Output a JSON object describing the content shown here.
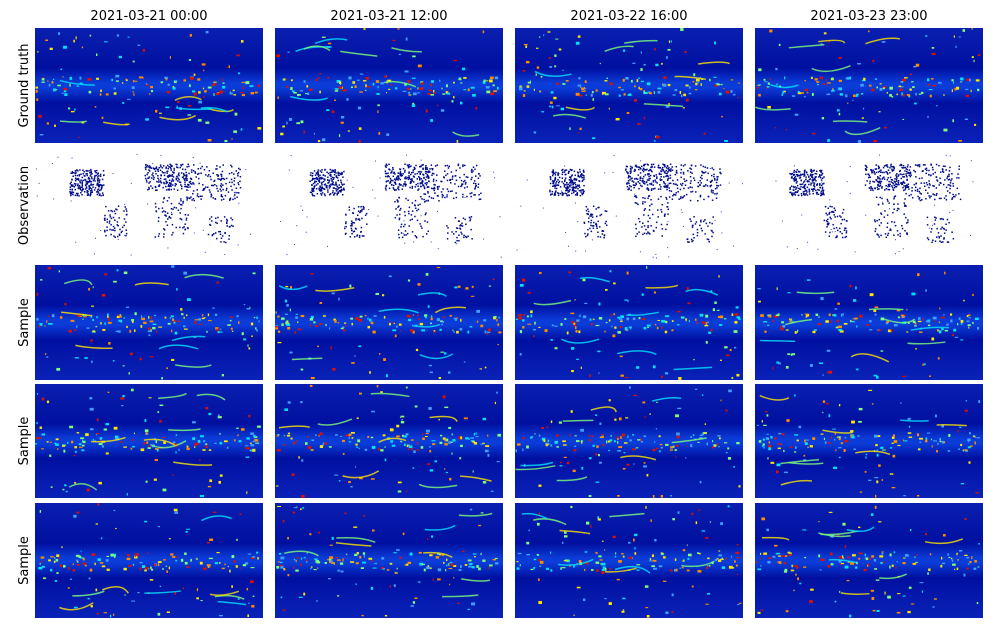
{
  "columns": [
    "2021-03-21 00:00",
    "2021-03-21 12:00",
    "2021-03-22 16:00",
    "2021-03-23 23:00"
  ],
  "rows": [
    "Ground truth",
    "Observation",
    "Sample",
    "Sample",
    "Sample"
  ]
}
